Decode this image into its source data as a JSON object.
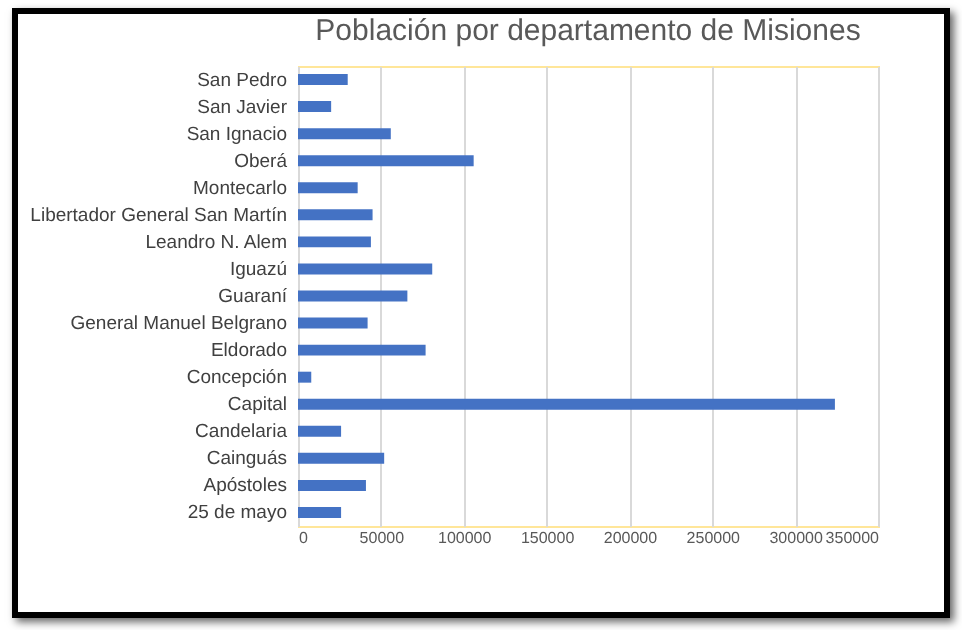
{
  "chart_data": {
    "type": "bar",
    "orientation": "horizontal",
    "title": "Población por departamento de Misiones",
    "categories": [
      "San Pedro",
      "San Javier",
      "San Ignacio",
      "Oberá",
      "Montecarlo",
      "Libertador General San Martín",
      "Leandro N. Alem",
      "Iguazú",
      "Guaraní",
      "General Manuel Belgrano",
      "Eldorado",
      "Concepción",
      "Capital",
      "Candelaria",
      "Cainguás",
      "Apóstoles",
      "25 de mayo"
    ],
    "values": [
      30000,
      20000,
      56000,
      106000,
      36000,
      45000,
      44000,
      81000,
      66000,
      42000,
      77000,
      8000,
      324000,
      26000,
      52000,
      41000,
      26000
    ],
    "color": "#4472c4",
    "xlim": [
      0,
      350000
    ],
    "xticks": [
      0,
      50000,
      100000,
      150000,
      200000,
      250000,
      300000,
      350000
    ],
    "grid": "x"
  }
}
